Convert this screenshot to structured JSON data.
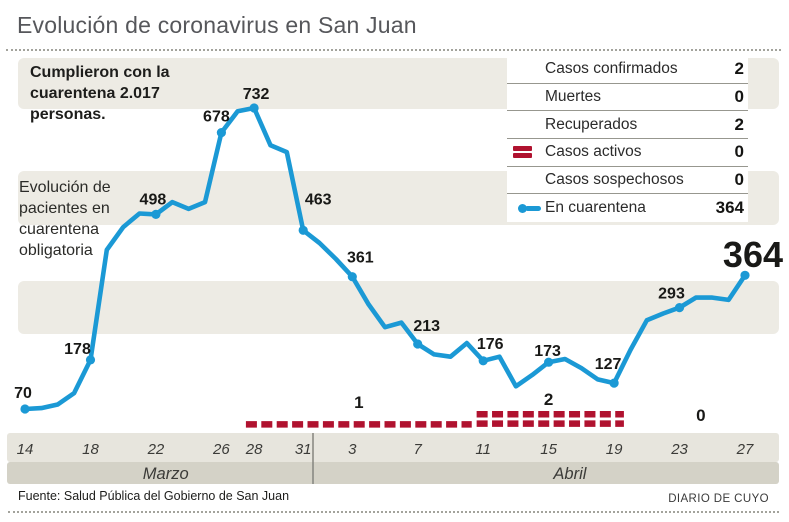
{
  "header": {
    "title": "Evolución de coronavirus en San Juan"
  },
  "annotations": {
    "quarantine_note": "Cumplieron con la cuarentena 2.017 personas.",
    "chart_label": "Evolución de pacientes en cuarentena obligatoria"
  },
  "stats_table": {
    "rows": [
      {
        "label": "Casos confirmados",
        "value": "2",
        "icon": null
      },
      {
        "label": "Muertes",
        "value": "0",
        "icon": null
      },
      {
        "label": "Recuperados",
        "value": "2",
        "icon": null
      },
      {
        "label": "Casos activos",
        "value": "0",
        "icon": "active-cases-dashes"
      },
      {
        "label": "Casos sospechosos",
        "value": "0",
        "icon": null
      },
      {
        "label": "En cuarentena",
        "value": "364",
        "icon": "quarantine-line"
      }
    ]
  },
  "chart_data": {
    "type": "line",
    "title": "Evolución de pacientes en cuarentena obligatoria",
    "x_axis": {
      "unit": "day",
      "tick_labels": [
        "14",
        "18",
        "22",
        "26",
        "28",
        "31",
        "3",
        "7",
        "11",
        "15",
        "19",
        "23",
        "27"
      ],
      "tick_day_indices": [
        0,
        4,
        8,
        12,
        14,
        17,
        20,
        24,
        28,
        32,
        36,
        40,
        44
      ],
      "month_divider_day_index": 17.6,
      "month_sections": [
        {
          "label": "Marzo",
          "label_day_index": 8.6
        },
        {
          "label": "Abril",
          "label_day_index": 33.3
        }
      ]
    },
    "y_range": [
      0,
      800
    ],
    "grid": false,
    "series": [
      {
        "name": "En cuarentena",
        "color": "#1B99D5",
        "daily_values": [
          70,
          72,
          80,
          105,
          178,
          420,
          470,
          500,
          498,
          525,
          510,
          525,
          678,
          725,
          732,
          650,
          635,
          463,
          435,
          400,
          361,
          300,
          250,
          260,
          213,
          190,
          185,
          215,
          176,
          185,
          120,
          145,
          173,
          180,
          160,
          135,
          127,
          200,
          265,
          280,
          293,
          315,
          315,
          310,
          364
        ],
        "labeled_points": [
          {
            "day_index": 0,
            "value": 70
          },
          {
            "day_index": 4,
            "value": 178
          },
          {
            "day_index": 8,
            "value": 498
          },
          {
            "day_index": 12,
            "value": 678
          },
          {
            "day_index": 14,
            "value": 732
          },
          {
            "day_index": 17,
            "value": 463
          },
          {
            "day_index": 20,
            "value": 361
          },
          {
            "day_index": 24,
            "value": 213
          },
          {
            "day_index": 28,
            "value": 176
          },
          {
            "day_index": 32,
            "value": 173
          },
          {
            "day_index": 36,
            "value": 127
          },
          {
            "day_index": 40,
            "value": 293
          },
          {
            "day_index": 44,
            "value": 364,
            "emphasis": true
          }
        ]
      }
    ],
    "active_cases_timeline": {
      "name": "Casos activos",
      "color": "#B0122F",
      "segments": [
        {
          "label": "1",
          "rows": 1,
          "start_day_index": 13.5,
          "end_day_index": 27.3,
          "label_day_index": 20.4
        },
        {
          "label": "2",
          "rows": 2,
          "start_day_index": 27.6,
          "end_day_index": 36.6,
          "label_day_index": 32.0
        },
        {
          "label": "0",
          "rows": 0,
          "start_day_index": 38.5,
          "end_day_index": 44,
          "label_day_index": 41.3
        }
      ]
    }
  },
  "footer": {
    "source": "Fuente: Salud Pública del Gobierno de San Juan",
    "credit": "DIARIO DE CUYO"
  }
}
